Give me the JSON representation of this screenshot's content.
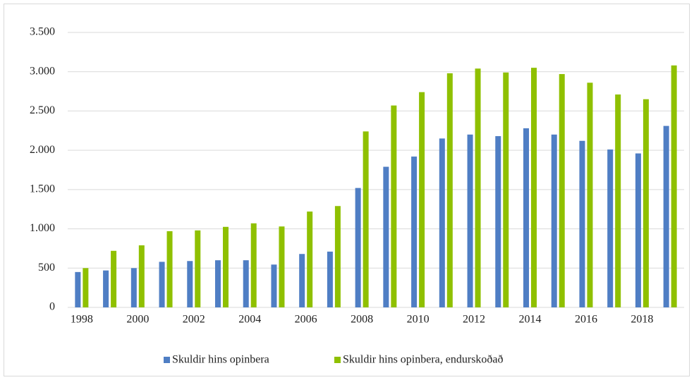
{
  "chart_data": {
    "type": "bar",
    "categories": [
      "1998",
      null,
      "2000",
      null,
      "2002",
      null,
      "2004",
      null,
      "2006",
      null,
      "2008",
      null,
      "2010",
      null,
      "2012",
      null,
      "2014",
      null,
      "2016",
      null,
      "2018",
      null
    ],
    "series": [
      {
        "name": "Skuldir hins opinbera",
        "color": "#4f7ec4",
        "values": [
          450,
          470,
          500,
          580,
          590,
          600,
          600,
          545,
          680,
          710,
          1520,
          1790,
          1920,
          2150,
          2200,
          2180,
          2280,
          2200,
          2120,
          2010,
          1960,
          2310
        ]
      },
      {
        "name": "Skuldir hins opinbera, endurskoðað",
        "color": "#8fc000",
        "values": [
          500,
          720,
          790,
          970,
          980,
          1025,
          1070,
          1030,
          1220,
          1290,
          2240,
          2570,
          2740,
          2980,
          3040,
          2990,
          3050,
          2970,
          2860,
          2710,
          2650,
          3080
        ]
      }
    ],
    "ylim": [
      0,
      3500
    ],
    "yticks": [
      0,
      500,
      {
        "value": 1000,
        "label": "1.000"
      },
      {
        "value": 1500,
        "label": "1.500"
      },
      {
        "value": 2000,
        "label": "2.000"
      },
      {
        "value": 2500,
        "label": "2.500"
      },
      {
        "value": 3000,
        "label": "3.000"
      },
      {
        "value": 3500,
        "label": "3.500"
      }
    ],
    "grid": true,
    "legend": "bottom"
  }
}
